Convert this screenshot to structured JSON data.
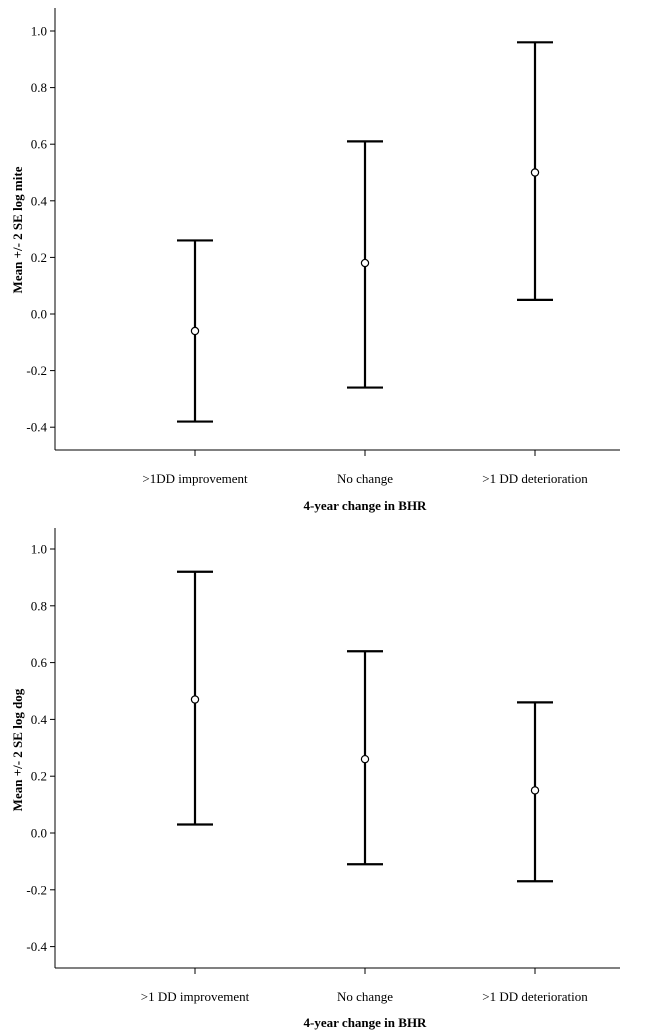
{
  "chart_data": [
    {
      "type": "errorbar",
      "xlabel": "4-year change in BHR",
      "ylabel": "Mean +/- 2 SE log mite",
      "ylim": [
        -0.45,
        1.05
      ],
      "yticks": [
        "1.0",
        "0.8",
        "0.6",
        "0.4",
        "0.2",
        "0.0",
        "-0.2",
        "-0.4"
      ],
      "ytick_values": [
        1.0,
        0.8,
        0.6,
        0.4,
        0.2,
        0.0,
        -0.2,
        -0.4
      ],
      "categories": [
        ">1DD improvement",
        "No change",
        ">1 DD deterioration"
      ],
      "means": [
        -0.06,
        0.18,
        0.5
      ],
      "lower": [
        -0.38,
        -0.26,
        0.05
      ],
      "upper": [
        0.26,
        0.61,
        0.96
      ],
      "grid": false
    },
    {
      "type": "errorbar",
      "xlabel": "4-year change in BHR",
      "ylabel": "Mean +/- 2 SE log dog",
      "ylim": [
        -0.48,
        1.08
      ],
      "yticks": [
        "1.0",
        "0.8",
        "0.6",
        "0.4",
        "0.2",
        "0.0",
        "-0.2",
        "-0.4"
      ],
      "ytick_values": [
        1.0,
        0.8,
        0.6,
        0.4,
        0.2,
        0.0,
        -0.2,
        -0.4
      ],
      "categories": [
        ">1 DD improvement",
        "No change",
        ">1 DD deterioration"
      ],
      "means": [
        0.47,
        0.26,
        0.15
      ],
      "lower": [
        0.03,
        -0.11,
        -0.17
      ],
      "upper": [
        0.92,
        0.64,
        0.46
      ],
      "grid": false
    }
  ]
}
